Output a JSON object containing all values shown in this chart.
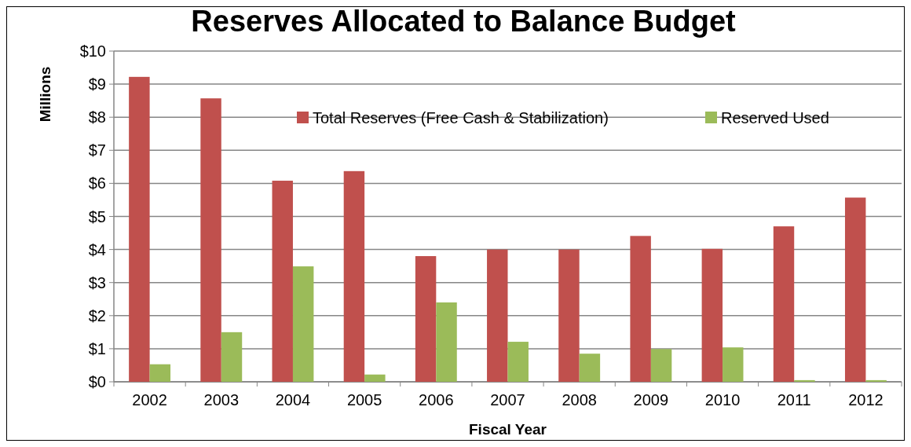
{
  "chart_data": {
    "type": "bar",
    "title": "Reserves Allocated to Balance Budget",
    "xlabel": "Fiscal Year",
    "ylabel": "Millions",
    "categories": [
      "2002",
      "2003",
      "2004",
      "2005",
      "2006",
      "2007",
      "2008",
      "2009",
      "2010",
      "2011",
      "2012"
    ],
    "series": [
      {
        "name": "Total Reserves (Free Cash & Stabilization)",
        "color": "#c0504d",
        "values": [
          9.22,
          8.57,
          6.08,
          6.37,
          3.8,
          4.0,
          4.0,
          4.41,
          4.02,
          4.7,
          5.57
        ]
      },
      {
        "name": "Reserved Used",
        "color": "#9bbb59",
        "values": [
          0.53,
          1.5,
          3.49,
          0.22,
          2.4,
          1.21,
          0.85,
          0.99,
          1.04,
          0.05,
          0.05
        ]
      }
    ],
    "ylim": [
      0,
      10
    ],
    "yticks": [
      {
        "value": 0,
        "label": "$0"
      },
      {
        "value": 1,
        "label": "$1"
      },
      {
        "value": 2,
        "label": "$2"
      },
      {
        "value": 3,
        "label": "$3"
      },
      {
        "value": 4,
        "label": "$4"
      },
      {
        "value": 5,
        "label": "$5"
      },
      {
        "value": 6,
        "label": "$6"
      },
      {
        "value": 7,
        "label": "$7"
      },
      {
        "value": 8,
        "label": "$8"
      },
      {
        "value": 9,
        "label": "$9"
      },
      {
        "value": 10,
        "label": "$10"
      }
    ],
    "grid": "y",
    "legend": "top right"
  }
}
